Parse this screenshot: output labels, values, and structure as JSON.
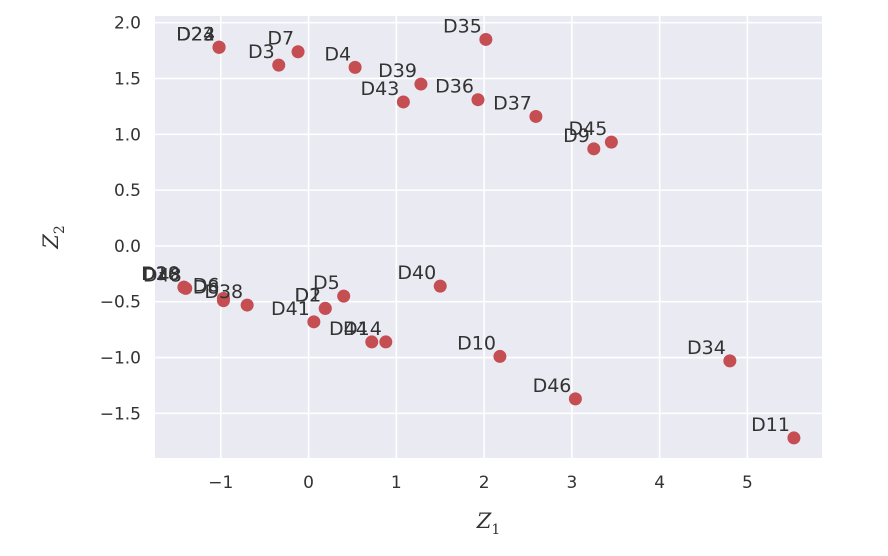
{
  "chart_data": {
    "type": "scatter",
    "xlabel": "Z",
    "xlabel_sub": "1",
    "ylabel": "Z",
    "ylabel_sub": "2",
    "xlim": [
      -1.75,
      5.85
    ],
    "ylim": [
      -1.9,
      2.06
    ],
    "xticks": [
      -1,
      0,
      1,
      2,
      3,
      4,
      5
    ],
    "xtick_labels": [
      "−1",
      "0",
      "1",
      "2",
      "3",
      "4",
      "5"
    ],
    "yticks": [
      -1.5,
      -1.0,
      -0.5,
      0.0,
      0.5,
      1.0,
      1.5,
      2.0
    ],
    "ytick_labels": [
      "−1.5",
      "−1.0",
      "−0.5",
      "0.0",
      "0.5",
      "1.0",
      "1.5",
      "2.0"
    ],
    "grid": true,
    "style": "seaborn-darkgrid",
    "colors": {
      "background": "#EAEAF2",
      "grid": "#FFFFFF",
      "point": "#C44E52",
      "text": "#333333"
    },
    "points": [
      {
        "label": "D22",
        "x": -1.02,
        "y": 1.78
      },
      {
        "label": "D23",
        "x": -1.02,
        "y": 1.78
      },
      {
        "label": "D24",
        "x": -1.02,
        "y": 1.78
      },
      {
        "label": "D3",
        "x": -0.34,
        "y": 1.62
      },
      {
        "label": "D7",
        "x": -0.12,
        "y": 1.74
      },
      {
        "label": "D4",
        "x": 0.53,
        "y": 1.6
      },
      {
        "label": "D35",
        "x": 2.02,
        "y": 1.85
      },
      {
        "label": "D39",
        "x": 1.28,
        "y": 1.45
      },
      {
        "label": "D36",
        "x": 1.93,
        "y": 1.31
      },
      {
        "label": "D43",
        "x": 1.08,
        "y": 1.29
      },
      {
        "label": "D37",
        "x": 2.59,
        "y": 1.16
      },
      {
        "label": "D45",
        "x": 3.45,
        "y": 0.93
      },
      {
        "label": "D9",
        "x": 3.25,
        "y": 0.87
      },
      {
        "label": "D28",
        "x": -1.42,
        "y": -0.37
      },
      {
        "label": "D30",
        "x": -1.42,
        "y": -0.37
      },
      {
        "label": "D18",
        "x": -1.42,
        "y": -0.37
      },
      {
        "label": "D48",
        "x": -1.4,
        "y": -0.38
      },
      {
        "label": "D6",
        "x": -0.97,
        "y": -0.47
      },
      {
        "label": "D8",
        "x": -0.97,
        "y": -0.49
      },
      {
        "label": "D38",
        "x": -0.7,
        "y": -0.53
      },
      {
        "label": "D5",
        "x": 0.4,
        "y": -0.45
      },
      {
        "label": "D1",
        "x": 0.19,
        "y": -0.56
      },
      {
        "label": "D2",
        "x": 0.19,
        "y": -0.56
      },
      {
        "label": "D41",
        "x": 0.06,
        "y": -0.68
      },
      {
        "label": "D44",
        "x": 0.72,
        "y": -0.86
      },
      {
        "label": "D14",
        "x": 0.88,
        "y": -0.86
      },
      {
        "label": "D40",
        "x": 1.5,
        "y": -0.36
      },
      {
        "label": "D10",
        "x": 2.18,
        "y": -0.99
      },
      {
        "label": "D46",
        "x": 3.04,
        "y": -1.37
      },
      {
        "label": "D34",
        "x": 4.8,
        "y": -1.03
      },
      {
        "label": "D11",
        "x": 5.53,
        "y": -1.72
      }
    ]
  }
}
